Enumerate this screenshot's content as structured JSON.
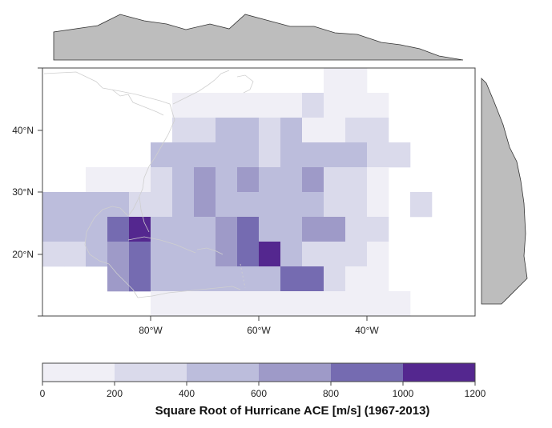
{
  "map": {
    "x_ticks": [
      "80°W",
      "60°W",
      "40°W"
    ],
    "y_ticks": [
      "40°N",
      "30°N",
      "20°N"
    ],
    "coastline_color": "#cfcfcf",
    "cells": [
      {
        "row": 0,
        "cols": [
          2,
          16,
          21,
          22
        ]
      },
      {
        "row": 1,
        "cols": [
          10,
          11,
          12,
          13,
          14,
          15,
          19,
          20,
          21,
          22,
          23
        ]
      },
      {
        "row": 2,
        "cols": []
      }
    ]
  },
  "marginals": {
    "fill_color": "#bdbdbd",
    "stroke_color": "#333333"
  },
  "colorbar": {
    "title": "Square Root of Hurricane ACE [m/s] (1967-2013)",
    "tick_labels": [
      "0",
      "200",
      "400",
      "600",
      "800",
      "1000",
      "1200"
    ],
    "colors": [
      "#f0eff6",
      "#dadaeb",
      "#bcbddc",
      "#9e9ac8",
      "#756bb1",
      "#54278f"
    ]
  }
}
